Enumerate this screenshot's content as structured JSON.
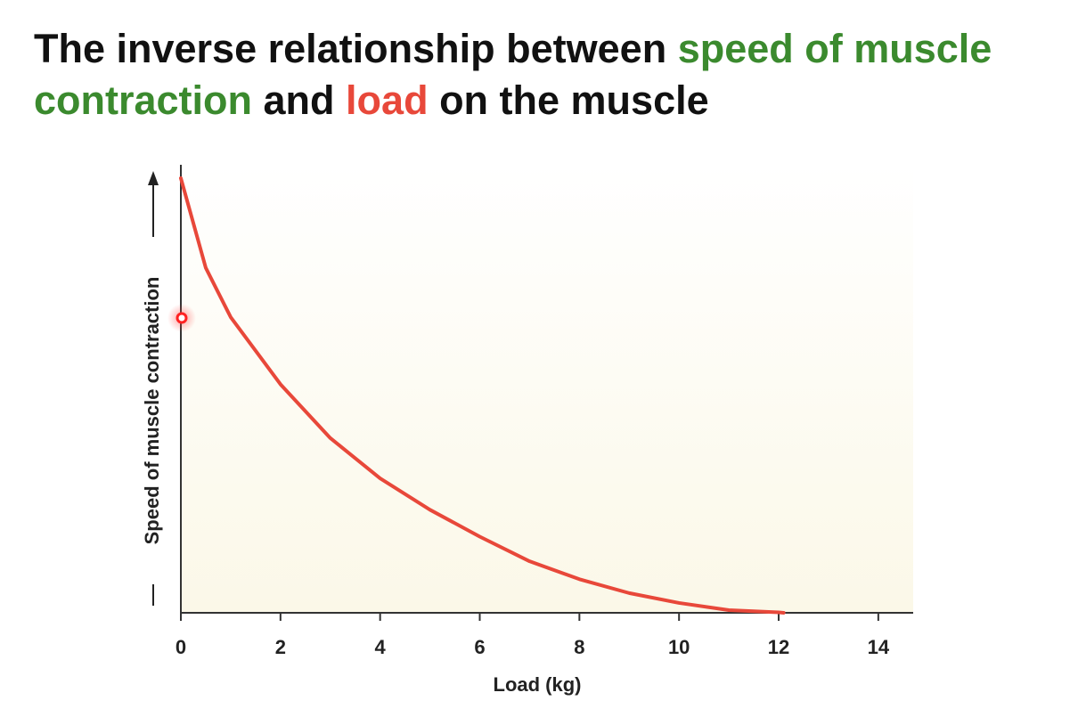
{
  "chart_data": {
    "type": "line",
    "title": [
      "The inverse relationship between ",
      "speed of muscle contraction",
      " and ",
      "load",
      " on the muscle"
    ],
    "xlabel": "Load (kg)",
    "ylabel": "Speed of muscle contraction",
    "x": [
      0,
      0.5,
      1,
      2,
      3,
      4,
      5,
      6,
      7,
      8,
      9,
      10,
      11,
      12,
      12.1
    ],
    "series": [
      {
        "name": "Speed",
        "color": "#e8483a",
        "values": [
          97,
          77,
          66,
          51,
          39,
          30,
          23,
          17,
          11.5,
          7.5,
          4.4,
          2.2,
          0.6,
          0.1,
          0
        ]
      }
    ],
    "xlim": [
      0,
      14.7
    ],
    "xticks": [
      0,
      2,
      4,
      6,
      8,
      10,
      12,
      14
    ],
    "ylim": [
      0,
      100
    ],
    "grid": false
  }
}
